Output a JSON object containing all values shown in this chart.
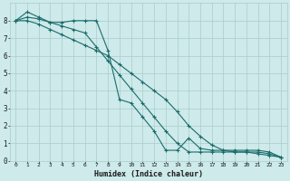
{
  "xlabel": "Humidex (Indice chaleur)",
  "ylabel": "",
  "bg_color": "#ceeaea",
  "grid_color": "#aacccc",
  "line_color": "#1a6b6b",
  "xlim": [
    -0.5,
    23.5
  ],
  "ylim": [
    0,
    9
  ],
  "xticks": [
    0,
    1,
    2,
    3,
    4,
    5,
    6,
    7,
    8,
    9,
    10,
    11,
    12,
    13,
    14,
    15,
    16,
    17,
    18,
    19,
    20,
    21,
    22,
    23
  ],
  "yticks": [
    0,
    1,
    2,
    3,
    4,
    5,
    6,
    7,
    8
  ],
  "series": [
    {
      "x": [
        0,
        1,
        2,
        3,
        4,
        5,
        6,
        7,
        8,
        9,
        10,
        11,
        12,
        13,
        14,
        15,
        16,
        17,
        18,
        19,
        20,
        21,
        22,
        23
      ],
      "y": [
        8.0,
        8.5,
        8.2,
        7.9,
        7.9,
        8.0,
        8.0,
        8.0,
        6.3,
        3.5,
        3.3,
        2.5,
        1.7,
        0.6,
        0.6,
        1.3,
        0.7,
        0.6,
        0.6,
        0.6,
        0.6,
        0.6,
        0.5,
        0.2
      ]
    },
    {
      "x": [
        0,
        1,
        2,
        3,
        4,
        5,
        6,
        7,
        8,
        9,
        10,
        11,
        12,
        13,
        14,
        15,
        16,
        17,
        18,
        19,
        20,
        21,
        22,
        23
      ],
      "y": [
        8.0,
        8.2,
        8.1,
        7.9,
        7.7,
        7.5,
        7.3,
        6.5,
        5.7,
        4.9,
        4.1,
        3.3,
        2.5,
        1.7,
        1.0,
        0.5,
        0.5,
        0.5,
        0.5,
        0.5,
        0.5,
        0.5,
        0.4,
        0.2
      ]
    },
    {
      "x": [
        0,
        1,
        2,
        3,
        4,
        5,
        6,
        7,
        8,
        9,
        10,
        11,
        12,
        13,
        14,
        15,
        16,
        17,
        18,
        19,
        20,
        21,
        22,
        23
      ],
      "y": [
        8.0,
        8.0,
        7.8,
        7.5,
        7.2,
        6.9,
        6.6,
        6.3,
        6.0,
        5.5,
        5.0,
        4.5,
        4.0,
        3.5,
        2.8,
        2.0,
        1.4,
        0.9,
        0.6,
        0.5,
        0.5,
        0.4,
        0.3,
        0.2
      ]
    }
  ]
}
